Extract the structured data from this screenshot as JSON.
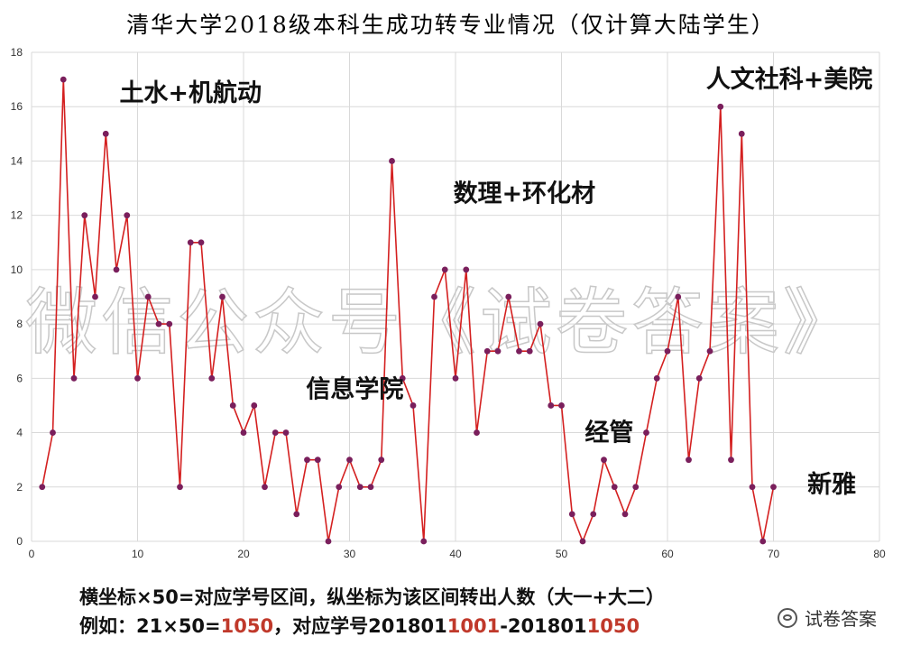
{
  "chart_data": {
    "type": "line",
    "title": "清华大学2018级本科生成功转专业情况（仅计算大陆学生）",
    "x": [
      1,
      2,
      3,
      4,
      5,
      6,
      7,
      8,
      9,
      10,
      11,
      12,
      13,
      14,
      15,
      16,
      17,
      18,
      19,
      20,
      21,
      22,
      23,
      24,
      25,
      26,
      27,
      28,
      29,
      30,
      31,
      32,
      33,
      34,
      35,
      36,
      37,
      38,
      39,
      40,
      41,
      42,
      43,
      44,
      45,
      46,
      47,
      48,
      49,
      50,
      51,
      52,
      53,
      54,
      55,
      56,
      57,
      58,
      59,
      60,
      61,
      62,
      63,
      64,
      65,
      66,
      67,
      68,
      69,
      70
    ],
    "values": [
      2,
      4,
      17,
      6,
      12,
      9,
      15,
      10,
      12,
      6,
      9,
      8,
      8,
      2,
      11,
      11,
      6,
      9,
      5,
      4,
      5,
      2,
      4,
      4,
      1,
      3,
      3,
      0,
      2,
      3,
      2,
      2,
      3,
      14,
      6,
      5,
      0,
      9,
      10,
      6,
      10,
      4,
      7,
      7,
      9,
      7,
      7,
      8,
      5,
      5,
      1,
      0,
      1,
      3,
      2,
      1,
      2,
      4,
      6,
      7,
      9,
      3,
      6,
      7,
      16,
      3,
      15,
      2,
      0,
      2
    ],
    "xlim": [
      0,
      80
    ],
    "ylim": [
      0,
      18
    ],
    "x_ticks": [
      "0",
      "10",
      "20",
      "30",
      "40",
      "50",
      "60",
      "70",
      "80"
    ],
    "y_ticks": [
      "0",
      "2",
      "4",
      "6",
      "8",
      "10",
      "12",
      "14",
      "16",
      "18"
    ],
    "grid": true,
    "line_color": "#d42020",
    "marker_color": "#7a1f5c",
    "annotations": [
      {
        "text": "土水+机航动",
        "x": 15,
        "y": 16.2
      },
      {
        "text": "数理+环化材",
        "x": 46.5,
        "y": 12.5
      },
      {
        "text": "信息学院",
        "x": 30.5,
        "y": 5.3
      },
      {
        "text": "人文社科+美院",
        "x": 71.5,
        "y": 16.7
      },
      {
        "text": "经管",
        "x": 54.5,
        "y": 3.7
      },
      {
        "text": "新雅",
        "x": 75.5,
        "y": 1.8
      }
    ]
  },
  "watermark": "微信公众号《试卷答案》",
  "notes": {
    "line1": "横坐标×50=对应学号区间，纵坐标为该区间转出人数（大一+大二）",
    "line2_prefix": "例如：21×50=",
    "line2_red1": "1050",
    "line2_mid": "，对应学号201801",
    "line2_red2": "1001",
    "line2_mid2": "-201801",
    "line2_red3": "1050"
  },
  "brand": {
    "icon": "wechat-icon",
    "text": "试卷答案"
  }
}
